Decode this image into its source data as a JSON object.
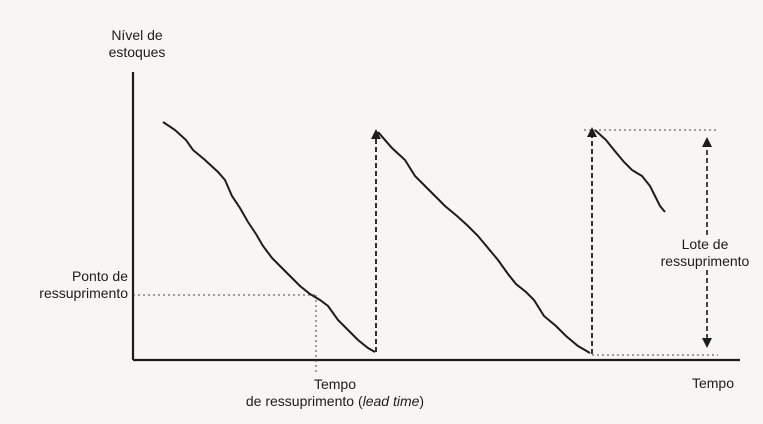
{
  "diagram": {
    "y_axis_label_line1": "Nível de",
    "y_axis_label_line2": "estoques",
    "x_axis_label": "Tempo",
    "reorder_point_line1": "Ponto de",
    "reorder_point_line2": "ressuprimento",
    "lead_time_line1": "Tempo",
    "lead_time_line2_prefix": "de ressuprimento (",
    "lead_time_line2_italic": "lead time",
    "lead_time_line2_suffix": ")",
    "lot_size_line1": "Lote de",
    "lot_size_line2": "ressuprimento"
  },
  "colors": {
    "ink": "#1c1c1c",
    "background": "#f7f6f2"
  }
}
